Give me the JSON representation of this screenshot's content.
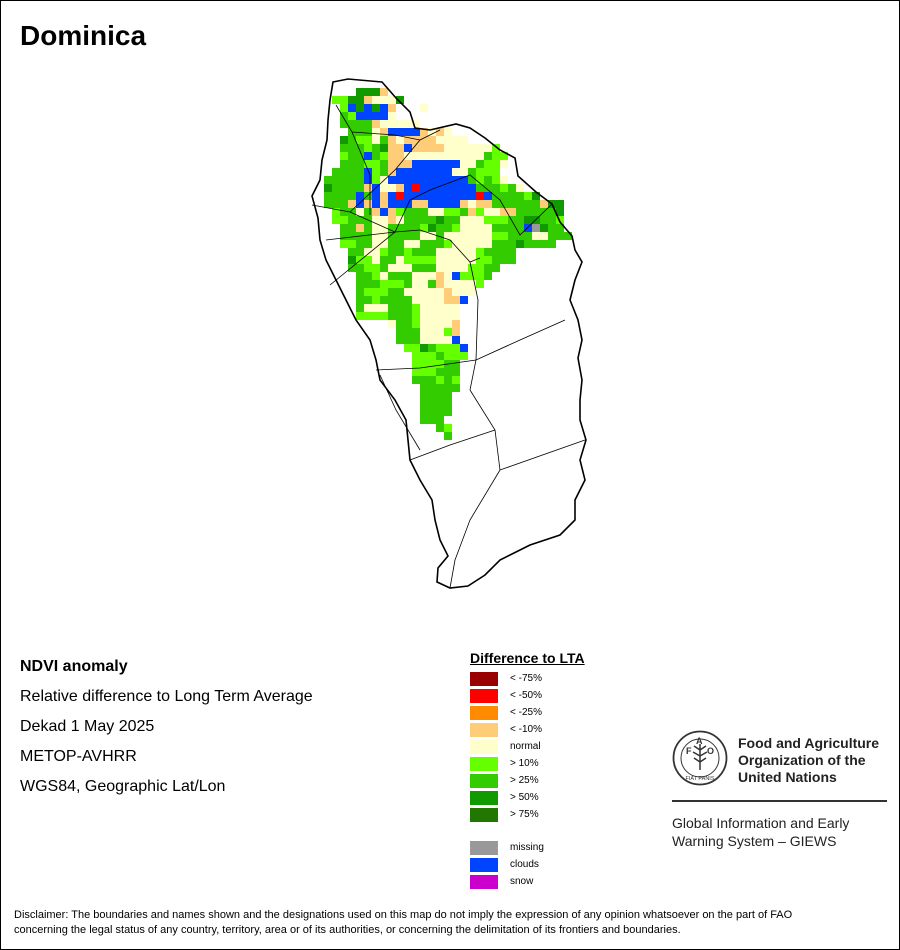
{
  "title": "Dominica",
  "info": {
    "line1": "NDVI anomaly",
    "line2": "Relative difference to Long Term Average",
    "line3": "Dekad 1 May 2025",
    "line4": "METOP-AVHRR",
    "line5": "WGS84, Geographic Lat/Lon"
  },
  "legend": {
    "title": "Difference to LTA",
    "classes": [
      {
        "label": "< -75%",
        "color": "#990000"
      },
      {
        "label": "< -50%",
        "color": "#ff0000"
      },
      {
        "label": "< -25%",
        "color": "#ff8c00"
      },
      {
        "label": "< -10%",
        "color": "#ffcc77"
      },
      {
        "label": "normal",
        "color": "#ffffcc"
      },
      {
        "label": "> 10%",
        "color": "#66ff00"
      },
      {
        "label": "> 25%",
        "color": "#33cc00"
      },
      {
        "label": "> 50%",
        "color": "#119900"
      },
      {
        "label": "> 75%",
        "color": "#227700"
      }
    ],
    "special": [
      {
        "label": "missing",
        "color": "#999999"
      },
      {
        "label": "clouds",
        "color": "#0044ff"
      },
      {
        "label": "snow",
        "color": "#cc00cc"
      }
    ]
  },
  "org": {
    "name_line1": "Food and Agriculture",
    "name_line2": "Organization of the",
    "name_line3": "United Nations",
    "logo_text": "FAO",
    "logo_ring_text": "FIAT PANIS",
    "system_line1": "Global Information and Early",
    "system_line2": "Warning System – GIEWS"
  },
  "disclaimer": {
    "line1": "Disclaimer: The boundaries and names shown and the designations used on this map do not imply the expression of any opinion whatsoever on the part of FAO",
    "line2": "concerning the legal status of any country, territory, area or of its authorities, or concerning the delimitation of its frontiers and boundaries."
  }
}
